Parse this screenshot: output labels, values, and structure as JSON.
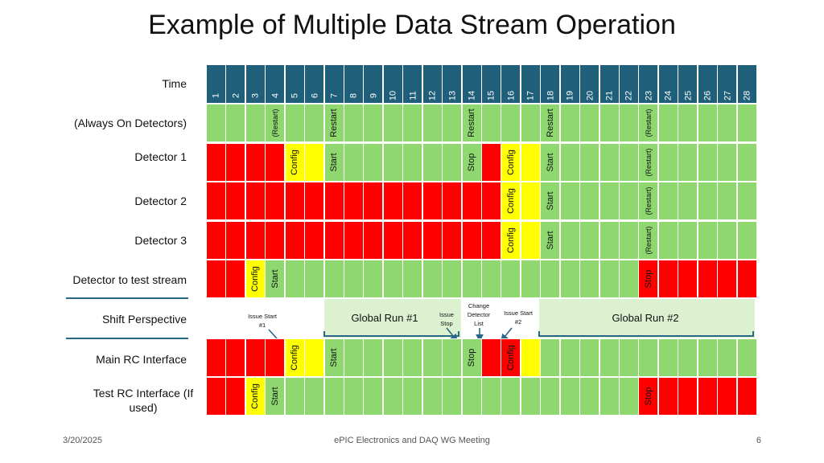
{
  "title": "Example of Multiple Data Stream Operation",
  "time_label": "Time",
  "time_slots": [
    "1",
    "2",
    "3",
    "4",
    "5",
    "6",
    "7",
    "8",
    "9",
    "10",
    "11",
    "12",
    "13",
    "14",
    "15",
    "16",
    "17",
    "18",
    "19",
    "20",
    "21",
    "22",
    "23",
    "24",
    "25",
    "26",
    "27",
    "28"
  ],
  "colors": {
    "header": "#1f5f7a",
    "green": "#8fd870",
    "red": "#ff0000",
    "yellow": "#ffff00",
    "band": "#dcf1d0",
    "accent": "#2a6687"
  },
  "rows": [
    {
      "label": "(Always On Detectors)",
      "segments": [
        [
          "G",
          28
        ]
      ],
      "marks": [
        {
          "slot": 4,
          "text": "(Restart)"
        },
        {
          "slot": 7,
          "text": "Restart"
        },
        {
          "slot": 14,
          "text": "Restart"
        },
        {
          "slot": 18,
          "text": "Restart"
        },
        {
          "slot": 23,
          "text": "(Restart)"
        }
      ]
    },
    {
      "label": "Detector 1",
      "segments": [
        [
          "R",
          4
        ],
        [
          "Y",
          2
        ],
        [
          "G",
          8
        ],
        [
          "R",
          1
        ],
        [
          "Y",
          2
        ],
        [
          "G",
          11
        ]
      ],
      "marks": [
        {
          "slot": 5,
          "text": "Config"
        },
        {
          "slot": 7,
          "text": "Start"
        },
        {
          "slot": 14,
          "text": "Stop"
        },
        {
          "slot": 16,
          "text": "Config"
        },
        {
          "slot": 18,
          "text": "Start"
        },
        {
          "slot": 23,
          "text": "(Restart)"
        }
      ]
    },
    {
      "label": "Detector 2",
      "segments": [
        [
          "R",
          15
        ],
        [
          "Y",
          2
        ],
        [
          "G",
          11
        ]
      ],
      "marks": [
        {
          "slot": 16,
          "text": "Config"
        },
        {
          "slot": 18,
          "text": "Start"
        },
        {
          "slot": 23,
          "text": "(Restart)"
        }
      ]
    },
    {
      "label": "Detector 3",
      "segments": [
        [
          "R",
          15
        ],
        [
          "Y",
          2
        ],
        [
          "G",
          11
        ]
      ],
      "marks": [
        {
          "slot": 16,
          "text": "Config"
        },
        {
          "slot": 18,
          "text": "Start"
        },
        {
          "slot": 23,
          "text": "(Restart)"
        }
      ]
    },
    {
      "label": "Detector to test stream",
      "segments": [
        [
          "R",
          2
        ],
        [
          "Y",
          1
        ],
        [
          "G",
          19
        ],
        [
          "R",
          6
        ]
      ],
      "marks": [
        {
          "slot": 3,
          "text": "Config"
        },
        {
          "slot": 4,
          "text": "Start"
        },
        {
          "slot": 23,
          "text": "Stop"
        }
      ]
    },
    {
      "label": "Main RC Interface",
      "segments": [
        [
          "R",
          4
        ],
        [
          "Y",
          2
        ],
        [
          "G",
          8
        ],
        [
          "R",
          2
        ],
        [
          "Y",
          1
        ],
        [
          "G",
          11
        ]
      ],
      "marks": [
        {
          "slot": 5,
          "text": "Config"
        },
        {
          "slot": 7,
          "text": "Start"
        },
        {
          "slot": 14,
          "text": "Stop"
        },
        {
          "slot": 16,
          "text": "Config"
        }
      ]
    },
    {
      "label": "Test RC Interface (If used)",
      "segments": [
        [
          "R",
          2
        ],
        [
          "Y",
          1
        ],
        [
          "G",
          19
        ],
        [
          "R",
          6
        ]
      ],
      "marks": [
        {
          "slot": 3,
          "text": "Config"
        },
        {
          "slot": 4,
          "text": "Start"
        },
        {
          "slot": 23,
          "text": "Stop"
        }
      ]
    }
  ],
  "shift": {
    "label": "Shift Perspective",
    "global_run_1": "Global Run #1",
    "global_run_2": "Global Run #2",
    "notes": [
      "Issue Start #1",
      "Issue Stop",
      "Change Detector List",
      "Issue Start #2"
    ]
  },
  "footer": {
    "date": "3/20/2025",
    "center": "ePIC Electronics and DAQ WG Meeting",
    "page": "6"
  }
}
